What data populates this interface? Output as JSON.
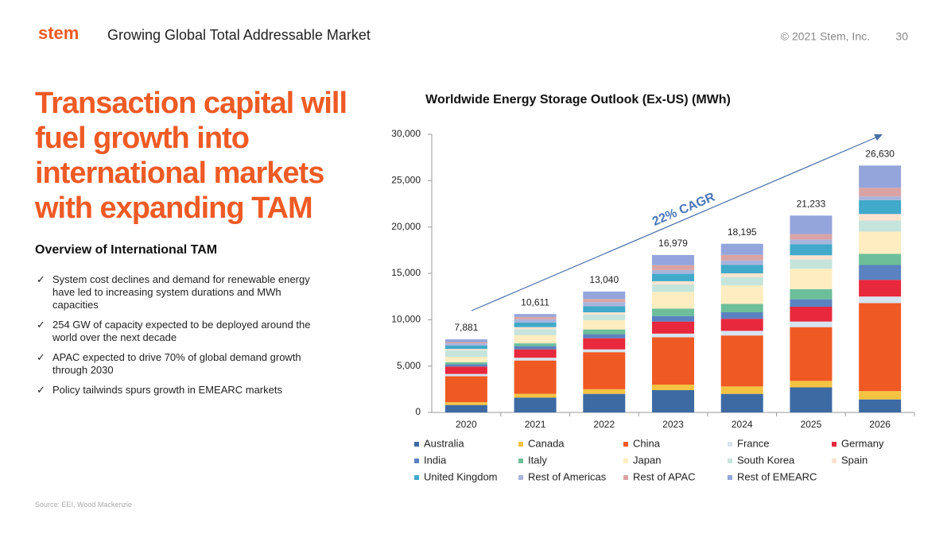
{
  "header": {
    "logo": "stem",
    "title": "Growing Global Total Addressable Market",
    "copyright": "© 2021 Stem, Inc.",
    "page_number": "30"
  },
  "headline": "Transaction capital will fuel growth into international markets with expanding TAM",
  "overview": {
    "title": "Overview of International TAM",
    "bullets": [
      "System cost declines and demand for renewable energy have led to increasing system durations and MWh capacities",
      "254 GW of capacity expected to be deployed around the world over the next decade",
      "APAC expected to drive 70% of global demand growth through 2030",
      "Policy tailwinds spurs growth in EMEARC markets"
    ]
  },
  "source": "Source: EEI,  Wood Mackenzie",
  "chart_data": {
    "type": "stacked_bar",
    "title": "Worldwide Energy Storage Outlook (Ex-US) (MWh)",
    "annotation": "22% CAGR",
    "categories": [
      "2020",
      "2021",
      "2022",
      "2023",
      "2024",
      "2025",
      "2026"
    ],
    "ylim": [
      0,
      30000
    ],
    "yticks": [
      0,
      {
        "value": 5000,
        "label": "5,000"
      },
      {
        "value": 10000,
        "label": "10,000"
      },
      {
        "value": 15000,
        "label": "15,000"
      },
      {
        "value": 20000,
        "label": "20,000"
      },
      {
        "value": 25000,
        "label": "25,000"
      },
      {
        "value": 30000,
        "label": "30,000"
      }
    ],
    "totals": [
      7881,
      10611,
      13040,
      16979,
      18195,
      21233,
      26630
    ],
    "total_labels": [
      "7,881",
      "10,611",
      "13,040",
      "16,979",
      "18,195",
      "21,233",
      "26,630"
    ],
    "series": [
      {
        "name": "Australia",
        "color": "#3d6aa3",
        "values": [
          800,
          1600,
          2000,
          2400,
          2000,
          2700,
          1400
        ]
      },
      {
        "name": "Canada",
        "color": "#f5c342",
        "values": [
          300,
          400,
          500,
          600,
          800,
          700,
          900
        ]
      },
      {
        "name": "China",
        "color": "#ef5a24",
        "values": [
          2800,
          3600,
          4000,
          5100,
          5500,
          5800,
          9500
        ]
      },
      {
        "name": "France",
        "color": "#d6e4f0",
        "values": [
          250,
          300,
          300,
          400,
          500,
          600,
          700
        ]
      },
      {
        "name": "Germany",
        "color": "#e8283c",
        "values": [
          800,
          900,
          1200,
          1300,
          1300,
          1600,
          1800
        ]
      },
      {
        "name": "India",
        "color": "#5b82c0",
        "values": [
          250,
          350,
          450,
          600,
          700,
          800,
          1600
        ]
      },
      {
        "name": "Italy",
        "color": "#6cbf9a",
        "values": [
          200,
          300,
          500,
          800,
          900,
          1100,
          1200
        ]
      },
      {
        "name": "Japan",
        "color": "#fdedc0",
        "values": [
          600,
          900,
          1000,
          1800,
          2000,
          2200,
          2400
        ]
      },
      {
        "name": "South Korea",
        "color": "#c5e4dc",
        "values": [
          700,
          600,
          600,
          800,
          900,
          1000,
          1200
        ]
      },
      {
        "name": "Spain",
        "color": "#fde3cf",
        "values": [
          150,
          250,
          250,
          350,
          400,
          450,
          700
        ]
      },
      {
        "name": "United Kingdom",
        "color": "#41a9c9",
        "values": [
          350,
          500,
          650,
          800,
          900,
          1200,
          1500
        ]
      },
      {
        "name": "Rest of Americas",
        "color": "#a7b4dc",
        "values": [
          250,
          350,
          450,
          400,
          500,
          500,
          400
        ]
      },
      {
        "name": "Rest of APAC",
        "color": "#d9a3a3",
        "values": [
          131,
          261,
          340,
          529,
          595,
          583,
          930
        ]
      },
      {
        "name": "Rest of EMEARC",
        "color": "#94a5dc",
        "values": [
          300,
          300,
          800,
          1100,
          1200,
          2000,
          2400
        ]
      }
    ]
  }
}
